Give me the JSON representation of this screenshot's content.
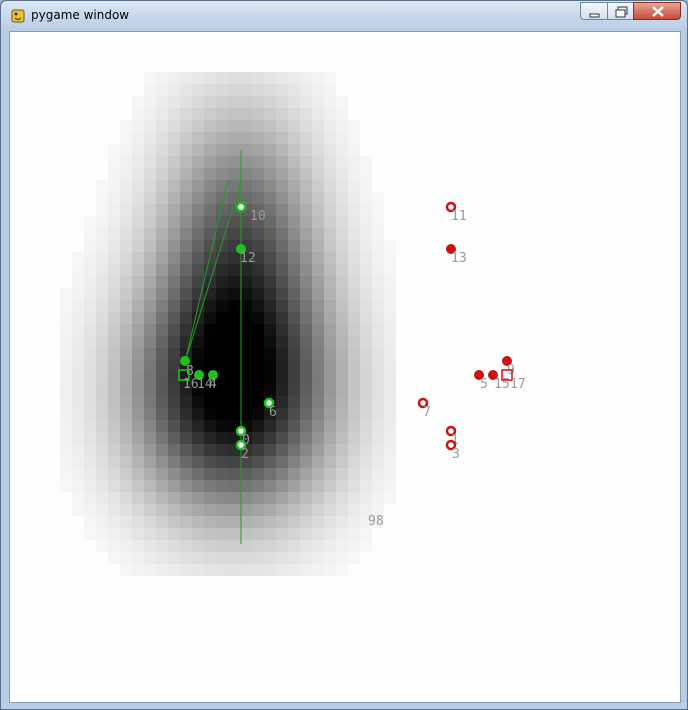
{
  "window": {
    "title": "pygame window",
    "buttons": {
      "minimize": "minimize",
      "maximize": "maximize",
      "close": "close"
    }
  },
  "scene": {
    "blob_label": "98",
    "green_points": [
      {
        "label": "10",
        "style": "ring"
      },
      {
        "label": "12",
        "style": "filled"
      },
      {
        "label": "8",
        "style": "filled"
      },
      {
        "label": "16",
        "style": "square"
      },
      {
        "label": "14",
        "style": "filled"
      },
      {
        "label": "4",
        "style": "filled"
      },
      {
        "label": "6",
        "style": "ring"
      },
      {
        "label": "0",
        "style": "ring"
      },
      {
        "label": "2",
        "style": "ring"
      }
    ],
    "red_points": [
      {
        "label": "11",
        "style": "ring"
      },
      {
        "label": "13",
        "style": "filled"
      },
      {
        "label": "9",
        "style": "filled"
      },
      {
        "label": "5",
        "style": "filled"
      },
      {
        "label": "15",
        "style": "filled"
      },
      {
        "label": "17",
        "style": "square"
      },
      {
        "label": "7",
        "style": "ring"
      },
      {
        "label": "1",
        "style": "ring"
      },
      {
        "label": "3",
        "style": "ring"
      }
    ],
    "colors": {
      "green": "#1ec21e",
      "red": "#cc1111",
      "line": "#22a022",
      "label": "#9a9a9a"
    }
  }
}
